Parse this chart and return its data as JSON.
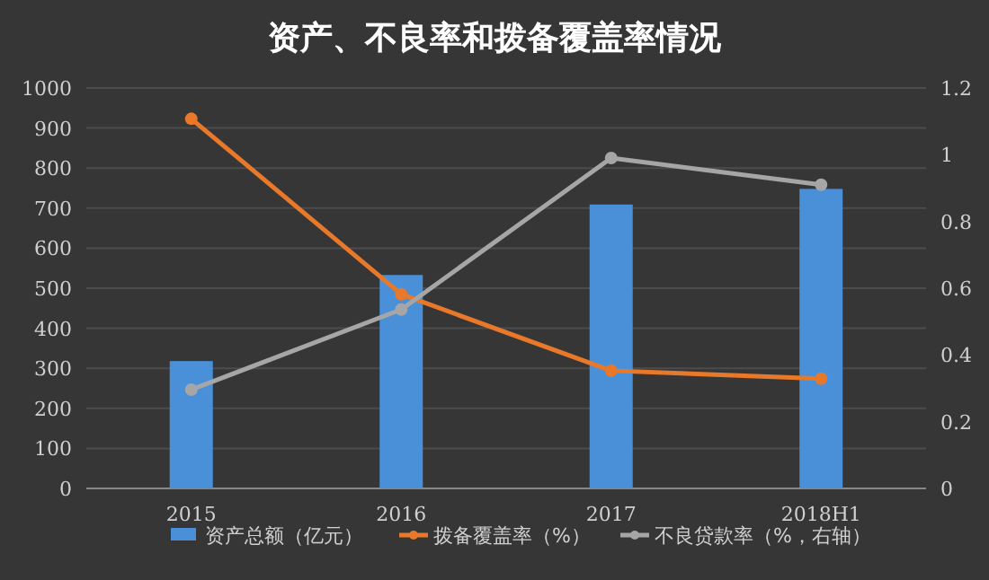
{
  "chart_data": {
    "type": "bar",
    "title": "资产、不良率和拨备覆盖率情况",
    "categories": [
      "2015",
      "2016",
      "2017",
      "2018H1"
    ],
    "series": [
      {
        "name": "资产总额（亿元）",
        "color": "#4a90d9",
        "values": [
          318,
          533,
          709,
          748
        ]
      },
      {
        "name": "拨备覆盖率（%）",
        "type": "line",
        "color": "#e8782a",
        "values": [
          923,
          485,
          294,
          274
        ],
        "marker": "circle"
      },
      {
        "name": "不良贷款率（%，右轴）",
        "type": "line",
        "axis": "y2",
        "color": "#a6a6a6",
        "values": [
          0.296,
          0.536,
          0.99,
          0.91
        ],
        "marker": "circle"
      }
    ],
    "ylim": [
      0,
      1000
    ],
    "yticks": [
      0,
      100,
      200,
      300,
      400,
      500,
      600,
      700,
      800,
      900,
      1000
    ],
    "y2lim": [
      0,
      1.2
    ],
    "y2ticks": [
      0,
      0.2,
      0.4,
      0.6,
      0.8,
      1,
      1.2
    ],
    "grid": "y",
    "legend": "bottom"
  }
}
